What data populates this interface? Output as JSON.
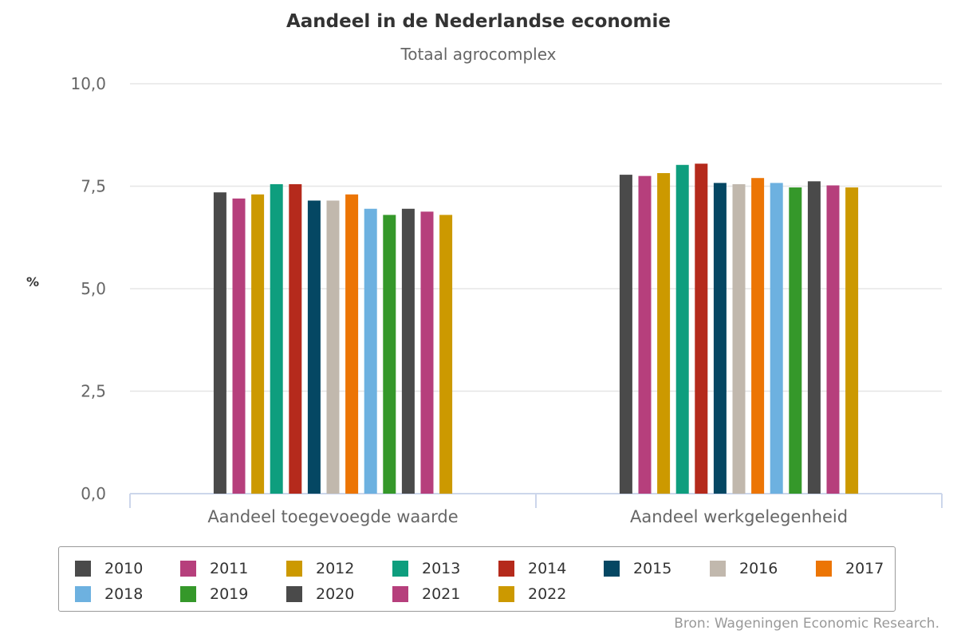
{
  "chart_data": {
    "type": "bar",
    "title": "Aandeel in de Nederlandse economie",
    "subtitle": "Totaal agrocomplex",
    "ylabel": "%",
    "xlabel": "",
    "ylim": [
      0,
      10
    ],
    "yticks": [
      "0,0",
      "2,5",
      "5,0",
      "7,5",
      "10,0"
    ],
    "ytick_values": [
      0,
      2.5,
      5,
      7.5,
      10
    ],
    "grid": true,
    "legend_position": "bottom",
    "categories": [
      "Aandeel toegevoegde waarde",
      "Aandeel werkgelegenheid"
    ],
    "series": [
      {
        "name": "2010",
        "color": "#4a4a4a",
        "values": [
          7.35,
          7.78
        ]
      },
      {
        "name": "2011",
        "color": "#b63f7c",
        "values": [
          7.2,
          7.75
        ]
      },
      {
        "name": "2012",
        "color": "#cc9900",
        "values": [
          7.3,
          7.82
        ]
      },
      {
        "name": "2013",
        "color": "#0e9e7e",
        "values": [
          7.55,
          8.02
        ]
      },
      {
        "name": "2014",
        "color": "#b52a1c",
        "values": [
          7.55,
          8.05
        ]
      },
      {
        "name": "2015",
        "color": "#054763",
        "values": [
          7.15,
          7.58
        ]
      },
      {
        "name": "2016",
        "color": "#c1b8ad",
        "values": [
          7.15,
          7.55
        ]
      },
      {
        "name": "2017",
        "color": "#ec7505",
        "values": [
          7.3,
          7.7
        ]
      },
      {
        "name": "2018",
        "color": "#6db1e0",
        "values": [
          6.95,
          7.58
        ]
      },
      {
        "name": "2019",
        "color": "#35982a",
        "values": [
          6.8,
          7.47
        ]
      },
      {
        "name": "2020",
        "color": "#4a4a4a",
        "values": [
          6.95,
          7.62
        ]
      },
      {
        "name": "2021",
        "color": "#b63f7c",
        "values": [
          6.88,
          7.52
        ]
      },
      {
        "name": "2022",
        "color": "#cc9900",
        "values": [
          6.8,
          7.47
        ]
      }
    ]
  },
  "source": "Bron: Wageningen Economic Research."
}
